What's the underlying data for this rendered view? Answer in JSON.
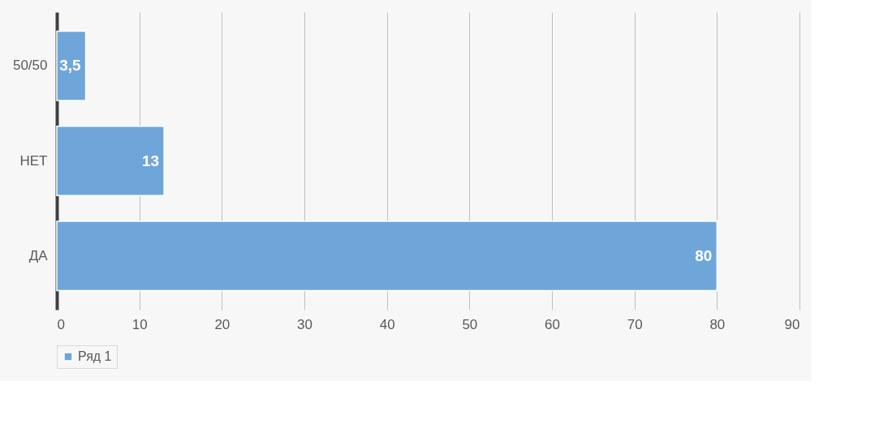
{
  "chart_data": {
    "type": "bar",
    "orientation": "horizontal",
    "categories": [
      "50/50",
      "НЕТ",
      "ДА"
    ],
    "series": [
      {
        "name": "Ряд 1",
        "color": "#6fa6da",
        "values": [
          3.5,
          13,
          80
        ],
        "value_labels": [
          "3,5",
          "13",
          "80"
        ]
      }
    ],
    "xlim": [
      0,
      90
    ],
    "xticks": [
      0,
      10,
      20,
      30,
      40,
      50,
      60,
      70,
      80,
      90
    ],
    "grid": "x",
    "legend": "bottom"
  }
}
